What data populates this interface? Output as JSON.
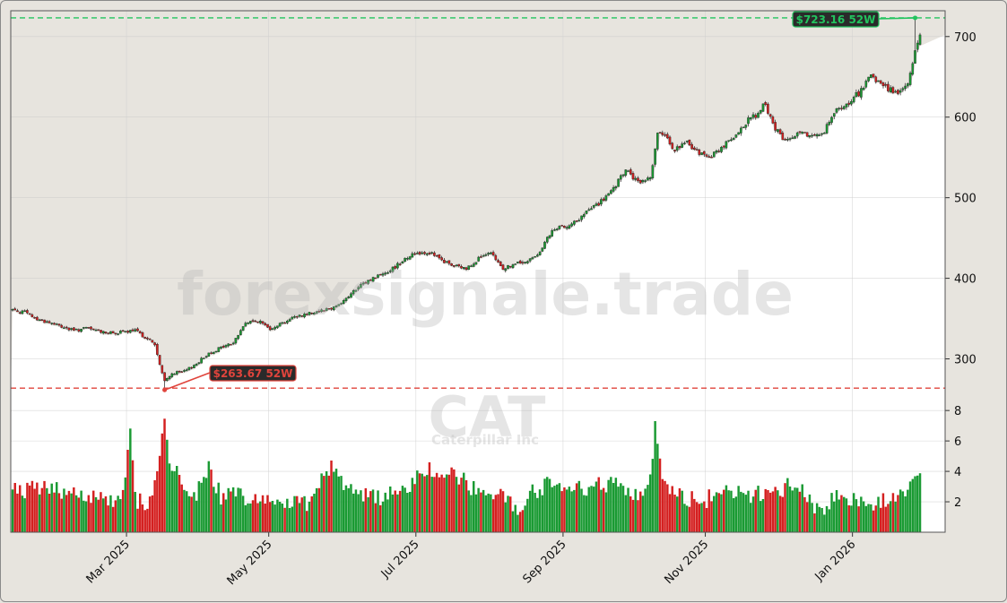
{
  "chart_data": {
    "type": "candlestick",
    "ticker": "CAT",
    "company": "Caterpillar Inc",
    "watermark": "forexsignale.trade",
    "price_axis": {
      "ticks": [
        "300",
        "400",
        "500",
        "600",
        "700"
      ],
      "range": [
        255,
        732
      ]
    },
    "volume_axis": {
      "ticks": [
        "2",
        "4",
        "6",
        "8"
      ],
      "range": [
        0,
        9.6
      ]
    },
    "x_ticks": [
      "Mar 2025",
      "May 2025",
      "Jul 2025",
      "Sep 2025",
      "Nov 2025",
      "Jan 2026"
    ],
    "high_52w": {
      "value": 723.16,
      "label": "$723.16 52W",
      "color": "#22c35e"
    },
    "low_52w": {
      "value": 263.67,
      "label": "$263.67 52W",
      "color": "#e0443c"
    },
    "up_color": "#1a9a33",
    "down_color": "#d42020",
    "price_anchors": [
      [
        0,
        361
      ],
      [
        5,
        358
      ],
      [
        10,
        349
      ],
      [
        15,
        345
      ],
      [
        20,
        340
      ],
      [
        25,
        335
      ],
      [
        30,
        338
      ],
      [
        35,
        335
      ],
      [
        40,
        332
      ],
      [
        45,
        333
      ],
      [
        50,
        335
      ],
      [
        55,
        325
      ],
      [
        58,
        318
      ],
      [
        60,
        292
      ],
      [
        62,
        272
      ],
      [
        65,
        282
      ],
      [
        70,
        284
      ],
      [
        75,
        294
      ],
      [
        80,
        307
      ],
      [
        85,
        314
      ],
      [
        90,
        320
      ],
      [
        95,
        345
      ],
      [
        100,
        347
      ],
      [
        105,
        338
      ],
      [
        110,
        345
      ],
      [
        115,
        352
      ],
      [
        120,
        356
      ],
      [
        125,
        360
      ],
      [
        130,
        363
      ],
      [
        135,
        372
      ],
      [
        140,
        386
      ],
      [
        145,
        397
      ],
      [
        150,
        405
      ],
      [
        155,
        412
      ],
      [
        160,
        425
      ],
      [
        165,
        432
      ],
      [
        170,
        432
      ],
      [
        175,
        422
      ],
      [
        180,
        415
      ],
      [
        185,
        412
      ],
      [
        190,
        425
      ],
      [
        195,
        430
      ],
      [
        200,
        412
      ],
      [
        205,
        418
      ],
      [
        210,
        420
      ],
      [
        215,
        434
      ],
      [
        220,
        458
      ],
      [
        225,
        465
      ],
      [
        230,
        470
      ],
      [
        235,
        485
      ],
      [
        240,
        495
      ],
      [
        245,
        510
      ],
      [
        250,
        535
      ],
      [
        255,
        518
      ],
      [
        260,
        525
      ],
      [
        263,
        580
      ],
      [
        266,
        575
      ],
      [
        270,
        560
      ],
      [
        275,
        568
      ],
      [
        280,
        555
      ],
      [
        285,
        552
      ],
      [
        290,
        565
      ],
      [
        295,
        575
      ],
      [
        300,
        598
      ],
      [
        305,
        605
      ],
      [
        306,
        620
      ],
      [
        310,
        590
      ],
      [
        315,
        570
      ],
      [
        320,
        578
      ],
      [
        325,
        578
      ],
      [
        330,
        578
      ],
      [
        335,
        605
      ],
      [
        340,
        615
      ],
      [
        345,
        630
      ],
      [
        350,
        650
      ],
      [
        355,
        640
      ],
      [
        360,
        630
      ],
      [
        365,
        640
      ],
      [
        368,
        680
      ],
      [
        370,
        705
      ]
    ],
    "volume_anchors": [
      [
        0,
        2.6
      ],
      [
        10,
        3.0
      ],
      [
        20,
        2.8
      ],
      [
        30,
        2.5
      ],
      [
        40,
        2.2
      ],
      [
        45,
        2.5
      ],
      [
        48,
        6.8
      ],
      [
        50,
        2.2
      ],
      [
        55,
        1.7
      ],
      [
        60,
        4.5
      ],
      [
        62,
        7.8
      ],
      [
        64,
        5.0
      ],
      [
        66,
        4.0
      ],
      [
        70,
        3.2
      ],
      [
        75,
        2.5
      ],
      [
        80,
        4.5
      ],
      [
        85,
        2.2
      ],
      [
        90,
        2.5
      ],
      [
        100,
        2.2
      ],
      [
        110,
        2.0
      ],
      [
        120,
        2.0
      ],
      [
        130,
        4.5
      ],
      [
        135,
        3.2
      ],
      [
        140,
        2.4
      ],
      [
        150,
        2.3
      ],
      [
        160,
        3.0
      ],
      [
        170,
        4.0
      ],
      [
        180,
        3.8
      ],
      [
        190,
        2.7
      ],
      [
        200,
        2.2
      ],
      [
        205,
        1.6
      ],
      [
        210,
        2.3
      ],
      [
        220,
        3.5
      ],
      [
        230,
        2.8
      ],
      [
        240,
        3.2
      ],
      [
        250,
        3.0
      ],
      [
        255,
        2.5
      ],
      [
        260,
        3.5
      ],
      [
        262,
        6.8
      ],
      [
        265,
        3.0
      ],
      [
        270,
        2.6
      ],
      [
        280,
        2.0
      ],
      [
        290,
        2.6
      ],
      [
        300,
        2.5
      ],
      [
        310,
        2.5
      ],
      [
        320,
        3.5
      ],
      [
        325,
        2.2
      ],
      [
        330,
        1.2
      ],
      [
        335,
        2.4
      ],
      [
        340,
        2.2
      ],
      [
        350,
        2.0
      ],
      [
        360,
        2.2
      ],
      [
        365,
        2.5
      ],
      [
        368,
        4.0
      ],
      [
        370,
        4.4
      ]
    ]
  }
}
